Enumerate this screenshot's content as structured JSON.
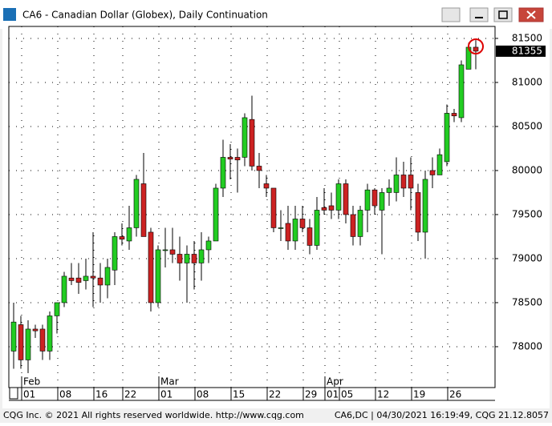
{
  "chart_data": {
    "type": "candlestick",
    "title": "CA6 - Canadian Dollar (Globex), Daily Continuation",
    "categories": [
      null,
      null,
      "01",
      null,
      null,
      null,
      null,
      "08",
      null,
      null,
      null,
      null,
      "16",
      null,
      null,
      null,
      "22",
      null,
      null,
      null,
      null,
      "01",
      null,
      null,
      null,
      null,
      "08",
      null,
      null,
      null,
      null,
      "15",
      null,
      null,
      null,
      null,
      "22",
      null,
      null,
      null,
      null,
      "29",
      null,
      null,
      "01",
      null,
      "05",
      null,
      null,
      null,
      null,
      "12",
      null,
      null,
      null,
      null,
      "19",
      null,
      null,
      null,
      null,
      "26",
      null,
      null,
      null
    ],
    "months": [
      null,
      null,
      "Feb",
      null,
      null,
      null,
      null,
      null,
      null,
      null,
      null,
      null,
      null,
      null,
      null,
      null,
      null,
      null,
      null,
      null,
      null,
      "Mar",
      null,
      null,
      null,
      null,
      null,
      null,
      null,
      null,
      null,
      null,
      null,
      null,
      null,
      null,
      null,
      null,
      null,
      null,
      null,
      null,
      null,
      null,
      "Apr",
      null,
      null,
      null,
      null,
      null,
      null,
      null,
      null,
      null,
      null,
      null,
      null,
      null,
      null,
      null,
      null,
      null,
      null,
      null,
      null
    ],
    "open": [
      77950,
      78250,
      77850,
      78200,
      78200,
      77950,
      78350,
      78500,
      78780,
      78780,
      78750,
      78800,
      78780,
      78700,
      78870,
      79250,
      79200,
      79350,
      79850,
      79300,
      78500,
      79100,
      79100,
      79050,
      78950,
      79050,
      78950,
      79100,
      79200,
      79800,
      80150,
      80150,
      80150,
      80580,
      80050,
      79850,
      79800,
      79350,
      79400,
      79200,
      79450,
      79350,
      79150,
      79580,
      79600,
      79550,
      79850,
      79500,
      79250,
      79550,
      79780,
      79550,
      79750,
      79750,
      79950,
      79950,
      79750,
      79300,
      80000,
      79950,
      80100,
      80650,
      80600,
      81150,
      81400
    ],
    "high": [
      78500,
      78350,
      78300,
      78250,
      78250,
      78400,
      78500,
      78850,
      78950,
      78950,
      79000,
      79300,
      78950,
      79000,
      79300,
      79400,
      79600,
      79950,
      80200,
      79350,
      79150,
      79350,
      79350,
      79250,
      79150,
      79200,
      79300,
      79250,
      79850,
      80350,
      80300,
      80250,
      80650,
      80850,
      80200,
      79950,
      79800,
      79550,
      79600,
      79600,
      79600,
      79450,
      79700,
      79800,
      79750,
      79900,
      79900,
      79600,
      79600,
      79850,
      79800,
      79800,
      79900,
      80150,
      80100,
      80150,
      79850,
      80000,
      80150,
      80250,
      80750,
      80700,
      81250,
      81450,
      81480
    ],
    "low": [
      77750,
      77750,
      77700,
      78100,
      77850,
      77850,
      78150,
      78450,
      78700,
      78600,
      78650,
      78450,
      78500,
      78550,
      78700,
      79150,
      79100,
      79250,
      79250,
      78400,
      78450,
      78900,
      78950,
      78750,
      78500,
      78650,
      78750,
      78950,
      79200,
      79700,
      79900,
      79750,
      80050,
      80000,
      79800,
      79700,
      79300,
      79200,
      79100,
      79100,
      79300,
      79050,
      79100,
      79500,
      79450,
      79450,
      79400,
      79150,
      79150,
      79300,
      79500,
      79050,
      79600,
      79650,
      79700,
      79550,
      79200,
      79000,
      79800,
      79950,
      80050,
      80550,
      80550,
      81150,
      81150
    ],
    "close": [
      78280,
      77850,
      78200,
      78180,
      77950,
      78350,
      78500,
      78800,
      78750,
      78730,
      78800,
      78780,
      78700,
      78900,
      79250,
      79220,
      79350,
      79900,
      79250,
      78500,
      79100,
      79100,
      79050,
      78950,
      79050,
      78950,
      79100,
      79200,
      79800,
      80150,
      80130,
      80120,
      80600,
      80050,
      80000,
      79800,
      79350,
      79350,
      79200,
      79450,
      79350,
      79150,
      79550,
      79550,
      79550,
      79850,
      79500,
      79250,
      79550,
      79780,
      79600,
      79750,
      79800,
      79950,
      79800,
      79800,
      79300,
      79900,
      79950,
      80180,
      80650,
      80620,
      81200,
      81400,
      81355
    ],
    "up_color": "#22cc22",
    "down_color": "#cc2222",
    "ylim": [
      77536,
      81636
    ],
    "yticks": [
      78000,
      78500,
      79000,
      79500,
      80000,
      80500,
      81000,
      81500
    ],
    "grid": true
  },
  "footer": {
    "left": "CQG Inc. © 2021 All rights reserved worldwide. http://www.cqg.com",
    "right": "CA6,DC | 04/30/2021 16:19:49, CQG 21.12.8057"
  }
}
